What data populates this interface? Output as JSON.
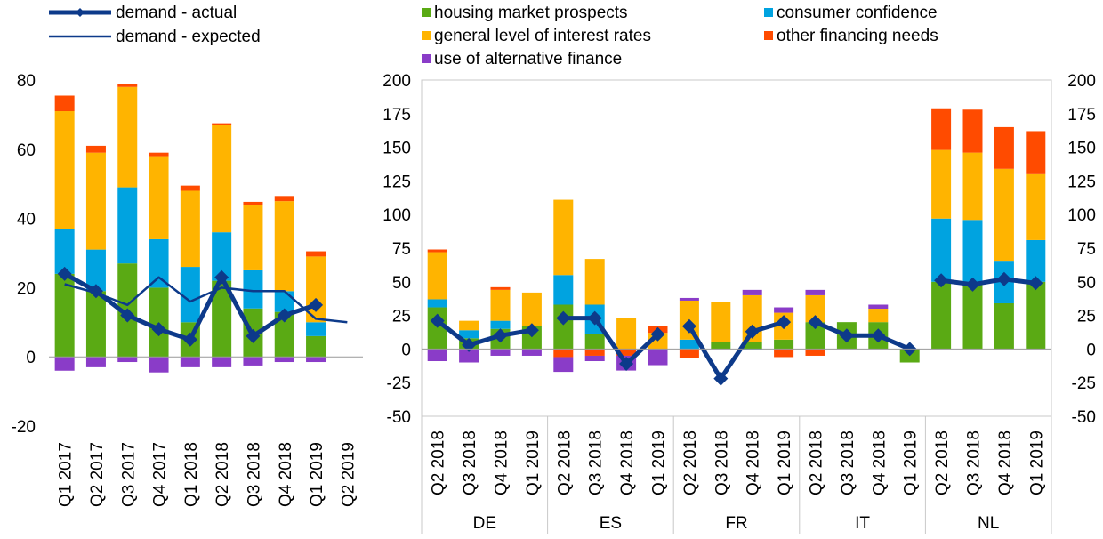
{
  "legend": {
    "items": [
      {
        "label": "demand - actual",
        "kind": "line-marker",
        "color": "#0D3A8A"
      },
      {
        "label": "demand - expected",
        "kind": "line",
        "color": "#0D3A8A"
      },
      {
        "label": "housing market prospects",
        "kind": "box",
        "color": "#5AAA14"
      },
      {
        "label": "consumer confidence",
        "kind": "box",
        "color": "#00A3E0"
      },
      {
        "label": "general level of interest rates",
        "kind": "box",
        "color": "#FFB400"
      },
      {
        "label": "other financing needs",
        "kind": "box",
        "color": "#FF4B00"
      },
      {
        "label": "use of alternative finance",
        "kind": "box",
        "color": "#8A3CC8"
      }
    ]
  },
  "chart_data": [
    {
      "type": "bar",
      "stacked": true,
      "ylim": [
        -20,
        80
      ],
      "yticks": [
        -20,
        0,
        20,
        40,
        60,
        80
      ],
      "categories": [
        "Q1 2017",
        "Q2 2017",
        "Q3 2017",
        "Q4 2017",
        "Q1 2018",
        "Q2 2018",
        "Q3 2018",
        "Q4 2018",
        "Q1 2019",
        "Q2 2019"
      ],
      "series": [
        {
          "name": "housing market prospects",
          "color": "#5AAA14",
          "values": [
            24,
            19,
            27,
            20,
            10,
            22,
            14,
            13,
            6,
            null
          ]
        },
        {
          "name": "consumer confidence",
          "color": "#00A3E0",
          "values": [
            13,
            12,
            22,
            14,
            16,
            14,
            11,
            6,
            4,
            null
          ]
        },
        {
          "name": "general level of interest rates",
          "color": "#FFB400",
          "values": [
            34,
            28,
            29,
            24,
            22,
            31,
            19,
            26,
            19,
            null
          ]
        },
        {
          "name": "other financing needs",
          "color": "#FF4B00",
          "values": [
            4.5,
            2,
            0.8,
            1,
            1.5,
            0.5,
            0.8,
            1.5,
            1.5,
            null
          ]
        },
        {
          "name": "use of alternative finance",
          "color": "#8A3CC8",
          "values": [
            -4,
            -3,
            -1.5,
            -4.5,
            -3,
            -3,
            -2.5,
            -1.5,
            -1.5,
            null
          ]
        }
      ],
      "lines": [
        {
          "name": "demand - actual",
          "color": "#0D3A8A",
          "marker": true,
          "values": [
            24,
            19,
            12,
            8,
            5,
            23,
            6,
            12,
            15,
            null
          ]
        },
        {
          "name": "demand - expected",
          "color": "#0D3A8A",
          "marker": false,
          "values": [
            21,
            18.5,
            15,
            23,
            16,
            20,
            19,
            19,
            11,
            10
          ]
        }
      ]
    },
    {
      "type": "bar",
      "stacked": true,
      "ylim": [
        -50,
        200
      ],
      "yticks": [
        -50,
        -25,
        0,
        25,
        50,
        75,
        100,
        125,
        150,
        175,
        200
      ],
      "groups": [
        {
          "name": "DE",
          "categories": [
            "Q2 2018",
            "Q3 2018",
            "Q4 2018",
            "Q1 2019"
          ],
          "series": {
            "housing market prospects": [
              31,
              8,
              15,
              17
            ],
            "consumer confidence": [
              6,
              6,
              6,
              0
            ],
            "general level of interest rates": [
              35,
              7,
              23,
              25
            ],
            "other financing needs": [
              2,
              0,
              2,
              0
            ],
            "use of alternative finance": [
              -9,
              -10,
              -5,
              -5
            ]
          },
          "actual": [
            21,
            3,
            10,
            14
          ]
        },
        {
          "name": "ES",
          "categories": [
            "Q2 2018",
            "Q3 2018",
            "Q4 2018",
            "Q1 2019"
          ],
          "series": {
            "housing market prospects": [
              33,
              11,
              0,
              0
            ],
            "consumer confidence": [
              22,
              22,
              0,
              0
            ],
            "general level of interest rates": [
              56,
              34,
              23,
              12
            ],
            "other financing needs": [
              -6,
              -5,
              -5,
              5
            ],
            "use of alternative finance": [
              -11,
              -4,
              -11,
              -12
            ]
          },
          "actual": [
            23,
            23,
            -11,
            11
          ]
        },
        {
          "name": "FR",
          "categories": [
            "Q2 2018",
            "Q3 2018",
            "Q4 2018",
            "Q1 2019"
          ],
          "series": {
            "housing market prospects": [
              0,
              5,
              5,
              7
            ],
            "consumer confidence": [
              7,
              0,
              -1,
              0
            ],
            "general level of interest rates": [
              29,
              30,
              35,
              20
            ],
            "other financing needs": [
              -7,
              0,
              0,
              -6
            ],
            "use of alternative finance": [
              2,
              0,
              4,
              4
            ]
          },
          "actual": [
            17,
            -22,
            13,
            20
          ]
        },
        {
          "name": "IT",
          "categories": [
            "Q2 2018",
            "Q3 2018",
            "Q4 2018",
            "Q1 2019"
          ],
          "series": {
            "housing market prospects": [
              20,
              20,
              20,
              -10
            ],
            "consumer confidence": [
              0,
              0,
              0,
              0
            ],
            "general level of interest rates": [
              20,
              0,
              10,
              0
            ],
            "other financing needs": [
              -5,
              0,
              0,
              0
            ],
            "use of alternative finance": [
              4,
              0,
              3,
              0
            ]
          },
          "actual": [
            20,
            10,
            10,
            0
          ]
        },
        {
          "name": "NL",
          "categories": [
            "Q2 2018",
            "Q3 2018",
            "Q4 2018",
            "Q1 2019"
          ],
          "series": {
            "housing market prospects": [
              50,
              50,
              34,
              50
            ],
            "consumer confidence": [
              47,
              46,
              31,
              31
            ],
            "general level of interest rates": [
              51,
              50,
              69,
              49
            ],
            "other financing needs": [
              31,
              32,
              31,
              32
            ],
            "use of alternative finance": [
              0,
              0,
              0,
              0
            ]
          },
          "actual": [
            51,
            48,
            52,
            49
          ]
        }
      ]
    }
  ]
}
